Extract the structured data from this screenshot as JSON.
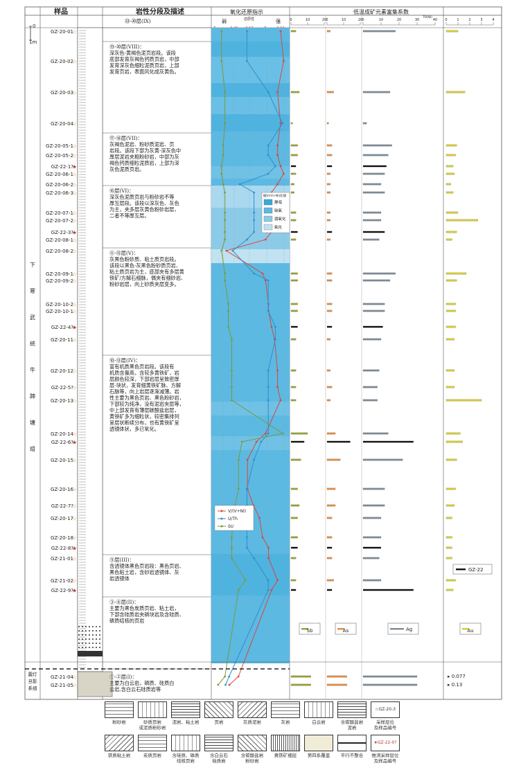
{
  "header": {
    "sample": "样品",
    "litho": "岩性分段及描述",
    "redox_title": "氧化还原指示",
    "redox_sub": "还原性",
    "redox_weak": "弱",
    "redox_strong": "强",
    "enrich_title": "低温成矿元素富集系数",
    "redox_ticks": [
      "0.46",
      "0.57",
      "0.63"
    ],
    "redox_ticks_black": [
      "1",
      "1"
    ],
    "sb_ticks": [
      "0",
      "10",
      "20"
    ],
    "as_ticks": [
      "0",
      "10",
      "20"
    ],
    "ag_ticks": [
      "0",
      "10",
      "20",
      "30",
      "40"
    ],
    "au_ticks": [
      "0",
      "1",
      "2",
      "3",
      "4"
    ],
    "ag_unit": "70(Ni)"
  },
  "scale": {
    "zero": "0",
    "one": "1m"
  },
  "formation_main": [
    "下",
    "寒",
    "武",
    "统",
    "牛",
    "蹄",
    "塘",
    "组"
  ],
  "formation_base": [
    "震灯",
    "旦影",
    "系组"
  ],
  "layers": [
    {
      "id": "ix",
      "text": "㉓-⑳层(IX)"
    },
    {
      "id": "viii",
      "text": "⑲-⑳层(VIII)：\n深灰色-黄褐色泥页岩段。该段\n底部发育灰褐色钙质页岩，中部\n发育深灰色细粒泥质页岩，上部\n发育页岩，表面风化成灰黄色。"
    },
    {
      "id": "vii",
      "text": "⑰-⑱层(VII)：\n灰褐色泥岩、粉砂质泥岩、页\n岩段。该段下部为灰黄-深灰色中\n厚层泥岩夹粗粉砂岩，中部为灰\n褐色钙质细粒泥质岩，上部为深\n灰色泥质页岩。"
    },
    {
      "id": "vi",
      "text": "⑯层(VI)：\n深灰色泥质页岩与粉砂岩不等\n厚互层段。该段以深灰色、灰色\n为主，夹多层灰黄色粉砂岩层，\n二者不等厚互层。"
    },
    {
      "id": "v",
      "text": "⑪-⑮层(V)：\n灰黑色粉砂质、粘土质页岩段。\n该段以黑色-灰黑色粉砂质页岩、\n粘土质页岩为主，底部夹有多层黄\n铁矿/方解石细脉，偶夹有细砂岩、\n粉砂岩层，向上砂质夹层变多。"
    },
    {
      "id": "iv",
      "text": "⑩-⑬层(IV)：\n富有机质黑色页岩段。该段有\n机质含量高，含较多黄铁矿，岩\n层颜色较深，下部岩层呈致密厚\n层-块状，发育细黄铁矿脉、方解\n石脉等，向上岩层逐渐减薄。岩\n性主要为黑色页岩、黑色粉砂岩，\n下部较为纯净，没有泥岩夹层等，\n中上部发育有薄层碳酸盐岩层，\n黄铁矿多为细粒状，较密集排列\n呈层状断续分布，也有黄铁矿呈\n透镜体状，多已氧化。"
    },
    {
      "id": "iii",
      "text": "⑨层(III)：\n含透镜体黑色页岩段：黑色页岩、\n黑色粘土岩，含砂岩透镜体、灰\n岩透镜体"
    },
    {
      "id": "ii",
      "text": "③-⑧层(II)：\n主要为黑色炭质页岩、粘土岩，\n下部含硅质岩夹磷块岩及含硅质、\n磷质结核的页岩"
    },
    {
      "id": "i",
      "text": "①-②层(I)：\n主要为白云岩，磷质、硅质白\n云岩,含白云石硅质岩等"
    }
  ],
  "samples": [
    {
      "name": "GZ-20-01",
      "kind": "open"
    },
    {
      "name": "GZ-20-02",
      "kind": "open"
    },
    {
      "name": "GZ-20-03",
      "kind": "open"
    },
    {
      "name": "GZ-20-04",
      "kind": "open"
    },
    {
      "name": "GZ-20-05-1",
      "kind": "open"
    },
    {
      "name": "GZ-20-05-2",
      "kind": "open"
    },
    {
      "name": "GZ-22-1?",
      "kind": "filled"
    },
    {
      "name": "GZ-20-06-1",
      "kind": "open"
    },
    {
      "name": "GZ-20-06-2",
      "kind": "open"
    },
    {
      "name": "GZ-20-06-3",
      "kind": "open"
    },
    {
      "name": "GZ-20-07-1",
      "kind": "open"
    },
    {
      "name": "GZ-20-07-2",
      "kind": "open"
    },
    {
      "name": "GZ-22-3?",
      "kind": "filled"
    },
    {
      "name": "GZ-20-08-1",
      "kind": "open"
    },
    {
      "name": "GZ-20-08-2",
      "kind": "open"
    },
    {
      "name": "GZ-20-09-1",
      "kind": "open"
    },
    {
      "name": "GZ-20-09-2",
      "kind": "open"
    },
    {
      "name": "GZ-20-10-2",
      "kind": "open"
    },
    {
      "name": "GZ-20-10-1",
      "kind": "open"
    },
    {
      "name": "GZ-22-4?",
      "kind": "filled"
    },
    {
      "name": "GZ-20-11",
      "kind": "open"
    },
    {
      "name": "GZ-20-12",
      "kind": "open"
    },
    {
      "name": "GZ-22-5?",
      "kind": "open"
    },
    {
      "name": "GZ-20-13",
      "kind": "open"
    },
    {
      "name": "GZ-20-14",
      "kind": "open"
    },
    {
      "name": "GZ-22-6?",
      "kind": "filled"
    },
    {
      "name": "GZ-20-15",
      "kind": "open"
    },
    {
      "name": "GZ-20-16",
      "kind": "open"
    },
    {
      "name": "GZ-22-7?",
      "kind": "open"
    },
    {
      "name": "GZ-20-17",
      "kind": "open"
    },
    {
      "name": "GZ-20-18",
      "kind": "open"
    },
    {
      "name": "GZ-22-8?",
      "kind": "filled"
    },
    {
      "name": "GZ-21-01",
      "kind": "open"
    },
    {
      "name": "GZ-21-02",
      "kind": "open"
    },
    {
      "name": "GZ-22-9?",
      "kind": "filled"
    },
    {
      "name": "GZ-21-04",
      "kind": "open"
    },
    {
      "name": "GZ-21-05",
      "kind": "open"
    }
  ],
  "redox_legend": {
    "title": "据V/(V+Ni)比值",
    "items": [
      {
        "label": "静海",
        "color": "#37a9db"
      },
      {
        "label": "缺氧",
        "color": "#5cb9e2"
      },
      {
        "label": "弱氧化",
        "color": "#8ccbe8"
      },
      {
        "label": "氧化",
        "color": "#c0e2f1"
      }
    ]
  },
  "series_legend": [
    {
      "label": "V/(V+Ni)",
      "color": "#d9463a"
    },
    {
      "label": "U/Th",
      "color": "#2c8fcf"
    },
    {
      "label": "δU",
      "color": "#7a9a3a"
    }
  ],
  "element_labels": [
    {
      "label": "Sb",
      "color": "#9aa02c"
    },
    {
      "label": "As",
      "color": "#e58a3b"
    },
    {
      "label": "Ag",
      "color": "#7c8a99"
    },
    {
      "label": "Au",
      "color": "#d7cc2a"
    }
  ],
  "gz22_label": "GZ-22",
  "au_outliers": [
    "0.077",
    "0.13"
  ],
  "colors": {
    "zone_blue": "#5cb9e2",
    "zone_light": "#a9d8ef",
    "vni": "#d9463a",
    "uth": "#2c8fcf",
    "du": "#7a9a3a"
  },
  "rock_legend": [
    {
      "label": "粉砂岩"
    },
    {
      "label": "砂质页岩\n或泥质粉砂岩"
    },
    {
      "label": "泥岩、粘土岩"
    },
    {
      "label": "页岩"
    },
    {
      "label": "灰质泥岩"
    },
    {
      "label": "灰岩"
    },
    {
      "label": "白云岩"
    },
    {
      "label": "含碳酸盐岩\n泥岩"
    },
    {
      "label": "采样层位\n及样品编号",
      "sample": "GZ-20-3"
    },
    {
      "label": "铁质粘土岩"
    },
    {
      "label": "炭质页岩"
    },
    {
      "label": "含硅质、磷质\n结核页岩"
    },
    {
      "label": "含白云石\n硅质岩"
    },
    {
      "label": "含碳酸盐岩\n粉砂岩"
    },
    {
      "label": "黄铁矿细层"
    },
    {
      "label": "第四系覆盖"
    },
    {
      "label": "平行不整合"
    },
    {
      "label": "推测采样层位\n及样品编号",
      "sample": "GZ-22-0?"
    }
  ],
  "chart_data": {
    "type": "line",
    "series": [
      {
        "name": "V/(V+Ni)",
        "values": [
          0.63,
          0.64,
          0.62,
          0.63,
          0.62,
          0.62,
          0.63,
          0.64,
          0.62,
          0.6,
          0.59,
          0.61,
          0.6,
          0.58,
          0.45,
          0.57,
          0.58,
          0.59,
          0.59,
          0.6,
          0.61,
          0.62,
          0.62,
          0.63,
          0.58,
          0.55,
          0.52,
          0.52,
          0.54,
          0.56,
          0.57,
          0.59,
          0.59,
          0.62,
          0.6,
          0.49,
          0.46
        ]
      },
      {
        "name": "U/Th",
        "values": [
          1.04,
          1.04,
          1.1,
          1.14,
          1.1,
          1.1,
          1.12,
          1.1,
          1.02,
          1.06,
          1.06,
          1.06,
          1.06,
          1.04,
          1.0,
          1.06,
          1.1,
          1.1,
          1.1,
          1.12,
          1.12,
          1.1,
          1.1,
          1.1,
          1.1,
          1.08,
          1.06,
          1.04,
          1.04,
          1.04,
          1.04,
          1.04,
          1.06,
          1.1,
          1.1,
          0.99,
          0.98
        ]
      },
      {
        "name": "δU",
        "values": [
          0.94,
          0.94,
          0.96,
          0.96,
          0.95,
          0.95,
          0.94,
          0.94,
          0.95,
          0.96,
          0.96,
          0.96,
          0.96,
          0.96,
          0.94,
          0.96,
          0.96,
          0.98,
          0.98,
          0.98,
          1.0,
          1.0,
          1.0,
          1.0,
          1.3,
          1.06,
          1.04,
          1.04,
          1.02,
          1.01,
          1.0,
          1.0,
          1.0,
          1.08,
          1.04,
          0.96,
          0.92
        ]
      }
    ],
    "enrichment": {
      "Sb": [
        3,
        0,
        5,
        1,
        4,
        4,
        3,
        3,
        2,
        2,
        3,
        3,
        4,
        3,
        0,
        4,
        4,
        4,
        4,
        4,
        3,
        3,
        3,
        3,
        10,
        8,
        6,
        4,
        5,
        4,
        4,
        4,
        3,
        3,
        3,
        12,
        12
      ],
      "As": [
        2,
        0,
        4,
        1,
        3,
        3,
        3,
        2,
        2,
        2,
        2,
        2,
        3,
        2,
        0,
        3,
        3,
        3,
        3,
        3,
        2,
        2,
        3,
        2,
        5,
        14,
        8,
        5,
        5,
        3,
        3,
        3,
        3,
        4,
        3,
        12,
        12
      ],
      "Ag": [
        18,
        0,
        15,
        2,
        16,
        14,
        13,
        12,
        10,
        12,
        10,
        10,
        12,
        9,
        0,
        18,
        15,
        12,
        12,
        11,
        10,
        9,
        8,
        8,
        14,
        28,
        22,
        12,
        12,
        10,
        10,
        10,
        9,
        10,
        28,
        30,
        30
      ],
      "Au": [
        1.0,
        0,
        1.6,
        0,
        0.9,
        0.8,
        0.6,
        0.7,
        0.4,
        0.6,
        1.0,
        2.7,
        0.9,
        0.5,
        0,
        1.7,
        0.9,
        0.8,
        0.8,
        0.8,
        0.7,
        0.7,
        0.7,
        3.0,
        1.2,
        1.4,
        0.9,
        0.8,
        0.7,
        0.5,
        0.5,
        0.5,
        0.5,
        0.8,
        0.6,
        0,
        0
      ]
    }
  }
}
